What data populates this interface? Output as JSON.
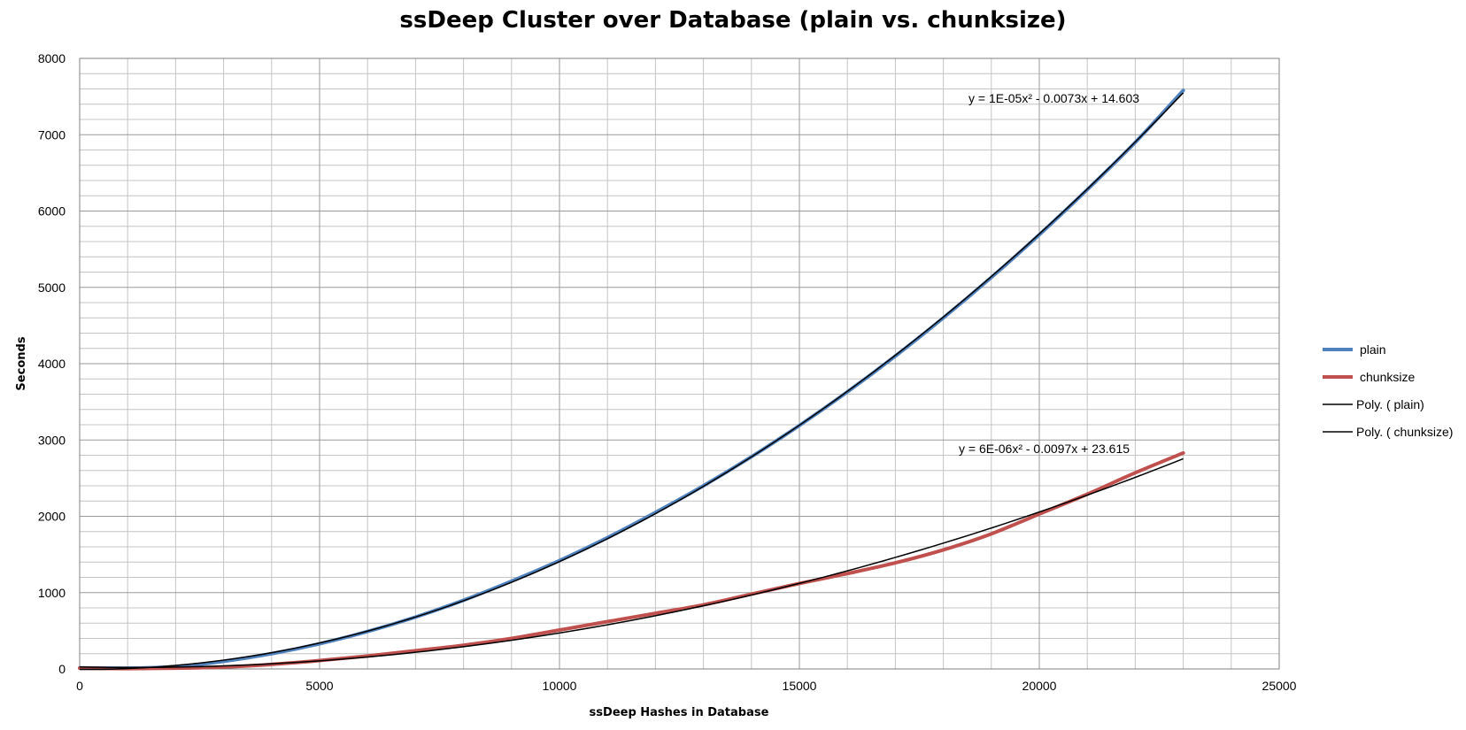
{
  "chart_data": {
    "type": "line",
    "title": "ssDeep Cluster over Database (plain vs. chunksize)",
    "xlabel": "ssDeep Hashes in Database",
    "ylabel": "Seconds",
    "xlim": [
      0,
      25000
    ],
    "ylim": [
      0,
      8000
    ],
    "x_ticks": [
      0,
      5000,
      10000,
      15000,
      20000,
      25000
    ],
    "y_ticks": [
      0,
      1000,
      2000,
      3000,
      4000,
      5000,
      6000,
      7000,
      8000
    ],
    "grid": true,
    "legend_position": "right",
    "series": [
      {
        "name": "plain",
        "color": "#4f81bd",
        "x": [
          0,
          1000,
          2000,
          3000,
          4000,
          5000,
          6000,
          7000,
          8000,
          9000,
          10000,
          11000,
          12000,
          13000,
          14000,
          15000,
          16000,
          17000,
          18000,
          19000,
          20000,
          21000,
          22000,
          23000
        ],
        "y": [
          15,
          10,
          30,
          100,
          200,
          330,
          490,
          680,
          900,
          1150,
          1420,
          1720,
          2050,
          2400,
          2780,
          3190,
          3630,
          4100,
          4600,
          5130,
          5690,
          6280,
          6900,
          7580
        ]
      },
      {
        "name": "chunksize",
        "color": "#c0504d",
        "x": [
          0,
          1000,
          2000,
          3000,
          4000,
          5000,
          6000,
          7000,
          8000,
          9000,
          10000,
          11000,
          12000,
          13000,
          14000,
          15000,
          16000,
          17000,
          18000,
          19000,
          20000,
          21000,
          22000,
          23000
        ],
        "y": [
          10,
          5,
          10,
          25,
          60,
          110,
          170,
          240,
          310,
          400,
          510,
          620,
          730,
          840,
          980,
          1120,
          1250,
          1390,
          1560,
          1770,
          2030,
          2290,
          2570,
          2830
        ]
      },
      {
        "name": "Poly. ( plain)",
        "color": "#000000",
        "trendline": true,
        "equation": "y = 1E-05x² - 0.0073x + 14.603"
      },
      {
        "name": "Poly. ( chunksize)",
        "color": "#000000",
        "trendline": true,
        "equation": "y = 6E-06x² - 0.0097x + 23.615"
      }
    ]
  }
}
